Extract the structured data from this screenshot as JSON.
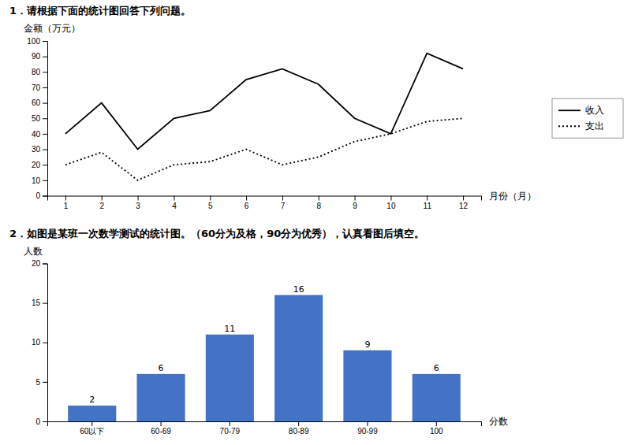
{
  "chart_data": [
    {
      "type": "line",
      "title": "1．请根据下面的统计图回答下列问题。",
      "x_label": "月份（月）",
      "y_label": "金额（万元）",
      "x": [
        1,
        2,
        3,
        4,
        5,
        6,
        7,
        8,
        9,
        10,
        11,
        12
      ],
      "series": [
        {
          "name": "收入",
          "color": "#000000",
          "line_style": "solid",
          "values": [
            40,
            60,
            30,
            50,
            55,
            75,
            82,
            72,
            50,
            40,
            92,
            82
          ]
        },
        {
          "name": "支出",
          "color": "#000000",
          "line_style": "dotted",
          "values": [
            20,
            28,
            10,
            20,
            22,
            30,
            20,
            25,
            35,
            40,
            48,
            50
          ]
        }
      ],
      "xlim": [
        0.5,
        12.5
      ],
      "xticks": [
        1,
        2,
        3,
        4,
        5,
        6,
        7,
        8,
        9,
        10,
        11,
        12
      ],
      "ylim": [
        0,
        100
      ],
      "yticks": [
        0,
        10,
        20,
        30,
        40,
        50,
        60,
        70,
        80,
        90,
        100
      ],
      "grid": false,
      "legend": "right"
    },
    {
      "type": "bar",
      "title": "2．如图是某班一次数学测试的统计图。（60分为及格，90分为优秀），认真看图后填空。",
      "x_label": "分数",
      "y_label": "人数",
      "categories": [
        "60以下",
        "60-69",
        "70-79",
        "80-89",
        "90-99",
        "100"
      ],
      "values": [
        2,
        6,
        11,
        16,
        9,
        6
      ],
      "color": "#4472c4",
      "ylim": [
        0,
        20
      ],
      "yticks": [
        0,
        5,
        10,
        15,
        20
      ],
      "grid": false,
      "data_labels": true
    }
  ]
}
